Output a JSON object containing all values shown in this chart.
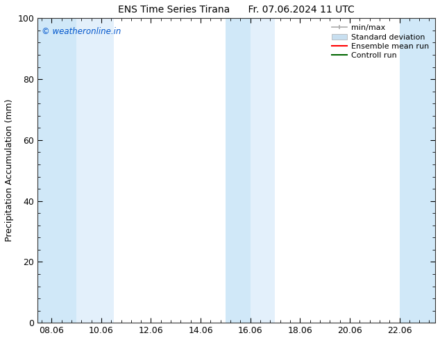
{
  "title_left": "ENS Time Series Tirana",
  "title_right": "Fr. 07.06.2024 11 UTC",
  "ylabel": "Precipitation Accumulation (mm)",
  "watermark": "© weatheronline.in",
  "watermark_color": "#0055cc",
  "xlim": [
    7.5,
    23.5
  ],
  "ylim": [
    0,
    100
  ],
  "xticks": [
    8.06,
    10.06,
    12.06,
    14.06,
    16.06,
    18.06,
    20.06,
    22.06
  ],
  "xticklabels": [
    "08.06",
    "10.06",
    "12.06",
    "14.06",
    "16.06",
    "18.06",
    "20.06",
    "22.06"
  ],
  "yticks": [
    0,
    20,
    40,
    60,
    80,
    100
  ],
  "shade_bands": [
    {
      "xmin": 7.5,
      "xmax": 9.06,
      "color": "#d0e8f8"
    },
    {
      "xmin": 9.06,
      "xmax": 10.56,
      "color": "#e3f0fb"
    },
    {
      "xmin": 15.06,
      "xmax": 16.06,
      "color": "#d0e8f8"
    },
    {
      "xmin": 16.06,
      "xmax": 17.06,
      "color": "#e3f0fb"
    },
    {
      "xmin": 22.06,
      "xmax": 23.5,
      "color": "#d0e8f8"
    }
  ],
  "bg_color": "#ffffff",
  "plot_bg_color": "#ffffff",
  "font_size": 9,
  "title_fontsize": 10,
  "legend_fontsize": 8,
  "minmax_color": "#aaaaaa",
  "std_color": "#c8dff0",
  "mean_color": "#ff0000",
  "control_color": "#006600"
}
